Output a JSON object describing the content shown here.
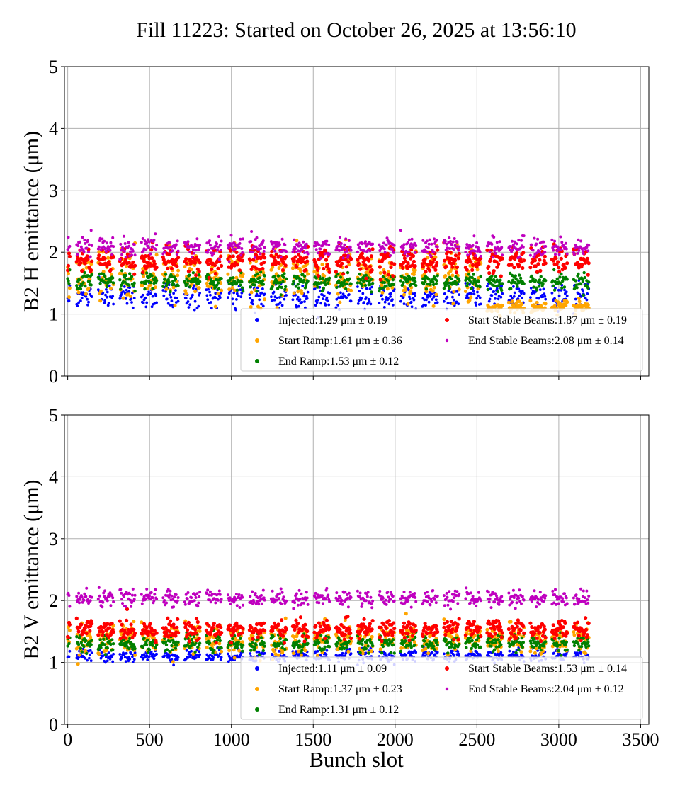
{
  "chart_data": {
    "title": "Fill 11223: Started on October 26, 2025 at 13:56:10",
    "xlabel": "Bunch slot",
    "xlim": [
      -20,
      3550
    ],
    "xticks": [
      0,
      500,
      1000,
      1500,
      2000,
      2500,
      3000,
      3500
    ],
    "type": "scatter",
    "panels": [
      {
        "ylabel": "B2 H emittance (μm)",
        "ylim": [
          0,
          5
        ],
        "yticks": [
          0,
          1,
          2,
          3,
          4,
          5
        ],
        "grid": true,
        "legend_position": "lower-right",
        "series": [
          {
            "name": "Injected",
            "stat": "Injected:1.29 μm ± 0.19",
            "color": "#0000ff",
            "mean": 1.29,
            "std": 0.19
          },
          {
            "name": "Start Ramp",
            "stat": "Start Ramp:1.61 μm ± 0.36",
            "color": "#ffa500",
            "mean": 1.61,
            "std": 0.36
          },
          {
            "name": "End Ramp",
            "stat": "End Ramp:1.53 μm ± 0.12",
            "color": "#008000",
            "mean": 1.53,
            "std": 0.12
          },
          {
            "name": "Start Stable Beams",
            "stat": "Start Stable Beams:1.87 μm ± 0.19",
            "color": "#ff0000",
            "mean": 1.87,
            "std": 0.19
          },
          {
            "name": "End Stable Beams",
            "stat": "End Stable Beams:2.08 μm ± 0.14",
            "color": "#bf00bf",
            "mean": 2.08,
            "std": 0.14
          }
        ]
      },
      {
        "ylabel": "B2 V emittance (μm)",
        "ylim": [
          0,
          5
        ],
        "yticks": [
          0,
          1,
          2,
          3,
          4,
          5
        ],
        "grid": true,
        "legend_position": "lower-right",
        "series": [
          {
            "name": "Injected",
            "stat": "Injected:1.11 μm ± 0.09",
            "color": "#0000ff",
            "mean": 1.11,
            "std": 0.09
          },
          {
            "name": "Start Ramp",
            "stat": "Start Ramp:1.37 μm ± 0.23",
            "color": "#ffa500",
            "mean": 1.37,
            "std": 0.23
          },
          {
            "name": "End Ramp",
            "stat": "End Ramp:1.31 μm ± 0.12",
            "color": "#008000",
            "mean": 1.31,
            "std": 0.12
          },
          {
            "name": "Start Stable Beams",
            "stat": "Start Stable Beams:1.53 μm ± 0.14",
            "color": "#ff0000",
            "mean": 1.53,
            "std": 0.14
          },
          {
            "name": "End Stable Beams",
            "stat": "End Stable Beams:2.04 μm ± 0.12",
            "color": "#bf00bf",
            "mean": 2.04,
            "std": 0.12
          }
        ]
      }
    ]
  }
}
